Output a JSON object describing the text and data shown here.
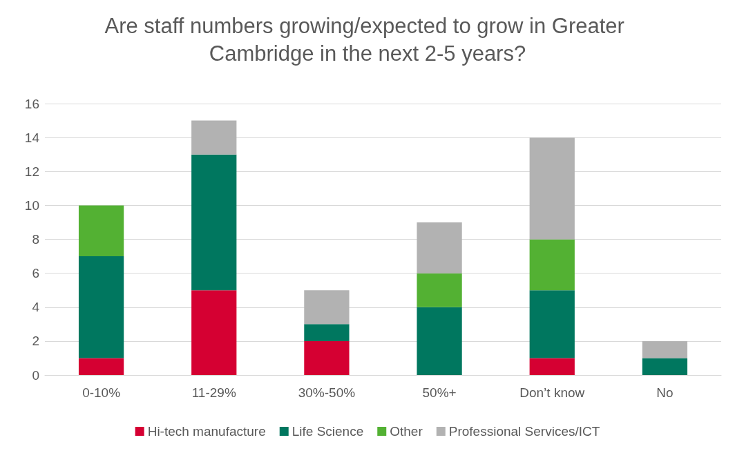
{
  "chart_data": {
    "type": "bar",
    "title": "Are staff numbers growing/expected to grow in Greater Cambridge in the next 2-5 years?",
    "categories": [
      "0-10%",
      "11-29%",
      "30%-50%",
      "50%+",
      "Don’t know",
      "No"
    ],
    "stacked": true,
    "series": [
      {
        "name": "Hi-tech manufacture",
        "color": "#d50032",
        "values": [
          1,
          5,
          2,
          0,
          1,
          0
        ]
      },
      {
        "name": "Life Science",
        "color": "#00775f",
        "values": [
          6,
          8,
          1,
          4,
          4,
          1
        ]
      },
      {
        "name": "Other",
        "color": "#53b133",
        "values": [
          3,
          0,
          0,
          2,
          3,
          0
        ]
      },
      {
        "name": "Professional Services/ICT",
        "color": "#b2b2b2",
        "values": [
          0,
          2,
          2,
          3,
          6,
          1
        ]
      }
    ],
    "ylim": [
      0,
      16
    ],
    "yticks": [
      0,
      2,
      4,
      6,
      8,
      10,
      12,
      14,
      16
    ],
    "grid": "y",
    "legend": "bottom"
  }
}
